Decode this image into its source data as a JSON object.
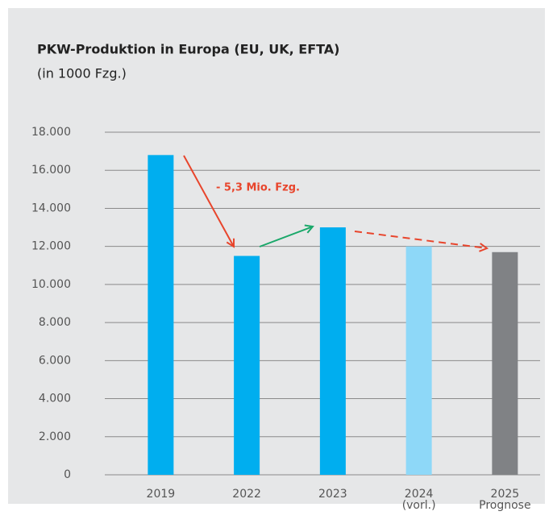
{
  "chart_data": {
    "type": "bar",
    "title": "PKW-Produktion in Europa (EU, UK, EFTA)",
    "subtitle": "(in 1000 Fzg.)",
    "annotation": "- 5,3 Mio. Fzg.",
    "categories": [
      "2019",
      "2022",
      "2023",
      "2024 (vorl.)",
      "2025 Prognose"
    ],
    "values": [
      16800,
      11500,
      13000,
      12000,
      11700
    ],
    "colors": [
      "#00aeef",
      "#00aeef",
      "#00aeef",
      "#8ed8f8",
      "#808285"
    ],
    "ylim": [
      0,
      18000
    ],
    "yticks": [
      0,
      {
        "value": 2000,
        "label": "2.000"
      },
      {
        "value": 4000,
        "label": "4.000"
      },
      {
        "value": 6000,
        "label": "6.000"
      },
      {
        "value": 8000,
        "label": "8.000"
      },
      {
        "value": 10000,
        "label": "10.000"
      },
      {
        "value": 12000,
        "label": "12.000"
      },
      {
        "value": 14000,
        "label": "14.000"
      },
      {
        "value": 16000,
        "label": "16.000"
      },
      {
        "value": 18000,
        "label": "18.000"
      }
    ],
    "grid": true
  }
}
